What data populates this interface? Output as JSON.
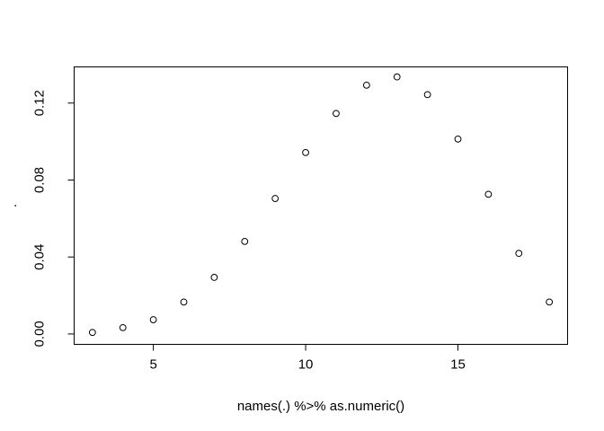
{
  "chart_data": {
    "type": "scatter",
    "title": "",
    "xlabel": "names(.) %>% as.numeric()",
    "ylabel": ".",
    "xlim": [
      2.4,
      18.6
    ],
    "ylim": [
      -0.0054,
      0.1388
    ],
    "xticks": [
      5,
      10,
      15
    ],
    "yticks": [
      0.0,
      0.04,
      0.08,
      0.12
    ],
    "xtick_labels": [
      "5",
      "10",
      "15"
    ],
    "ytick_labels": [
      "0.00",
      "0.04",
      "0.08",
      "0.12"
    ],
    "grid": false,
    "legend": "none",
    "marker": "open-circle",
    "points": [
      {
        "x": 3,
        "y": 0.0008
      },
      {
        "x": 4,
        "y": 0.0033
      },
      {
        "x": 5,
        "y": 0.0074
      },
      {
        "x": 6,
        "y": 0.0166
      },
      {
        "x": 7,
        "y": 0.0294
      },
      {
        "x": 8,
        "y": 0.0481
      },
      {
        "x": 9,
        "y": 0.0704
      },
      {
        "x": 10,
        "y": 0.0943
      },
      {
        "x": 11,
        "y": 0.1146
      },
      {
        "x": 12,
        "y": 0.1293
      },
      {
        "x": 13,
        "y": 0.1336
      },
      {
        "x": 14,
        "y": 0.1244
      },
      {
        "x": 15,
        "y": 0.1013
      },
      {
        "x": 16,
        "y": 0.0726
      },
      {
        "x": 17,
        "y": 0.0419
      },
      {
        "x": 18,
        "y": 0.0166
      }
    ]
  }
}
